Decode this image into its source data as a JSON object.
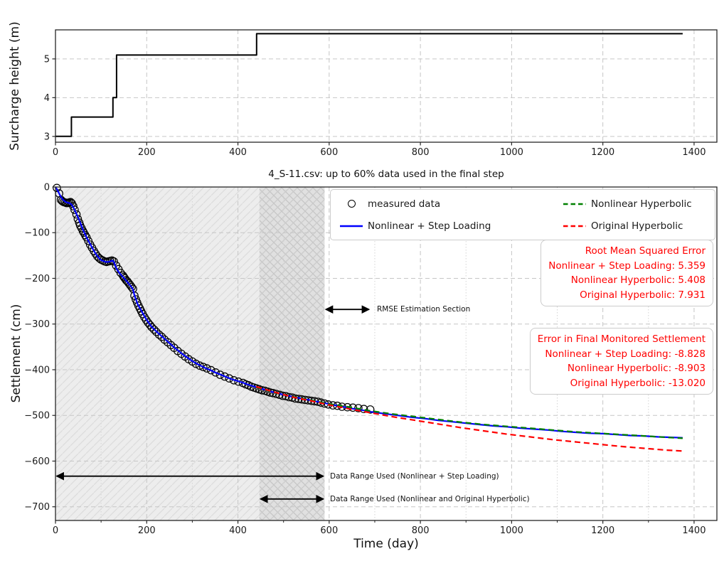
{
  "figure": {
    "title": "4_S-11.csv: up to 60% data used in the final step",
    "colors": {
      "measured": "#000000",
      "step_loading": "#0000ff",
      "nonlinear_hyperbolic": "#008000",
      "original_hyperbolic": "#ff0000",
      "annotation_text": "#ff0000",
      "grid": "#c6c6c6",
      "shade_light": "#ededed",
      "shade_dark": "#dddddd"
    }
  },
  "chart_data": [
    {
      "type": "line",
      "id": "surcharge",
      "ylabel": "Surcharge height (m)",
      "xlim": [
        0,
        1450
      ],
      "ylim": [
        2.85,
        5.75
      ],
      "xticks": [
        0,
        200,
        400,
        600,
        800,
        1000,
        1200,
        1400
      ],
      "xminor": [],
      "yticks": [
        3,
        4,
        5
      ],
      "grid": true,
      "series": [
        {
          "name": "surcharge-height",
          "color": "#000000",
          "style": "solid",
          "width": 2,
          "x": [
            0,
            35,
            35,
            126,
            126,
            134,
            134,
            441,
            441,
            1375
          ],
          "y": [
            3.0,
            3.0,
            3.5,
            3.5,
            4.0,
            4.0,
            5.1,
            5.1,
            5.65,
            5.65
          ]
        }
      ]
    },
    {
      "type": "scatter+line",
      "id": "settlement",
      "xlabel": "Time (day)",
      "ylabel": "Settlement (cm)",
      "xlim": [
        0,
        1450
      ],
      "ylim": [
        -730,
        0
      ],
      "xticks": [
        0,
        200,
        400,
        600,
        800,
        1000,
        1200,
        1400
      ],
      "xminor": [
        100,
        300,
        500,
        700,
        900,
        1100,
        1300
      ],
      "yticks": [
        0,
        -100,
        -200,
        -300,
        -400,
        -500,
        -600,
        -700
      ],
      "grid": true,
      "regions": [
        {
          "x0": 0,
          "x1": 590,
          "hatch": "/",
          "note": "Data range used (Nonlinear + Step Loading)"
        },
        {
          "x0": 447,
          "x1": 590,
          "hatch": "x",
          "note": "Data range used (Nonlinear and Original Hyperbolic)"
        }
      ],
      "measured": {
        "label": "measured data",
        "x": [
          3,
          8,
          12,
          15,
          18,
          21,
          24,
          27,
          30,
          33,
          36,
          39,
          42,
          46,
          49,
          52,
          54,
          57,
          60,
          62,
          65,
          68,
          72,
          76,
          80,
          84,
          88,
          92,
          96,
          100,
          104,
          108,
          112,
          116,
          120,
          124,
          128,
          133,
          138,
          143,
          148,
          150,
          152,
          155,
          158,
          161,
          164,
          167,
          170,
          173,
          176,
          179,
          182,
          185,
          188,
          191,
          195,
          199,
          203,
          207,
          211,
          216,
          221,
          227,
          233,
          239,
          246,
          253,
          260,
          268,
          276,
          284,
          292,
          300,
          308,
          316,
          324,
          332,
          341,
          351,
          361,
          371,
          381,
          391,
          401,
          411,
          417,
          423,
          429,
          435,
          441,
          447,
          453,
          459,
          465,
          471,
          477,
          484,
          491,
          498,
          505,
          512,
          519,
          526,
          533,
          540,
          547,
          554,
          561,
          568,
          575,
          582,
          590,
          598,
          608,
          618,
          628,
          640,
          652,
          664,
          676,
          690
        ],
        "y": [
          -2,
          -14,
          -28,
          -31,
          -33,
          -34,
          -35,
          -35,
          -34,
          -33,
          -36,
          -42,
          -50,
          -60,
          -70,
          -78,
          -84,
          -90,
          -96,
          -100,
          -105,
          -110,
          -118,
          -126,
          -133,
          -140,
          -146,
          -152,
          -156,
          -159,
          -161,
          -163,
          -164,
          -163,
          -162,
          -161,
          -163,
          -172,
          -180,
          -188,
          -194,
          -197,
          -200,
          -204,
          -207,
          -211,
          -215,
          -219,
          -223,
          -238,
          -246,
          -253,
          -260,
          -266,
          -272,
          -278,
          -285,
          -291,
          -297,
          -302,
          -307,
          -312,
          -317,
          -323,
          -328,
          -334,
          -340,
          -346,
          -352,
          -359,
          -365,
          -371,
          -377,
          -382,
          -387,
          -391,
          -394,
          -397,
          -401,
          -406,
          -411,
          -415,
          -419,
          -423,
          -426,
          -429,
          -432,
          -434,
          -437,
          -439,
          -441,
          -443,
          -445,
          -446,
          -448,
          -450,
          -451,
          -453,
          -455,
          -457,
          -458,
          -460,
          -461,
          -463,
          -464,
          -465,
          -466,
          -467,
          -468,
          -469,
          -470,
          -472,
          -474,
          -476,
          -478,
          -479,
          -481,
          -482,
          -483,
          -484,
          -486,
          -487
        ]
      },
      "series": [
        {
          "name": "Nonlinear + Step Loading",
          "color": "#0000ff",
          "style": "solid",
          "width": 2.2,
          "x": [
            0,
            5,
            10,
            15,
            20,
            25,
            30,
            35,
            40,
            45,
            50,
            55,
            60,
            65,
            70,
            75,
            80,
            85,
            90,
            95,
            100,
            105,
            110,
            115,
            120,
            125,
            128,
            131,
            135,
            140,
            145,
            150,
            155,
            160,
            165,
            170,
            173,
            176,
            180,
            185,
            190,
            195,
            200,
            205,
            210,
            220,
            230,
            240,
            250,
            260,
            270,
            280,
            290,
            300,
            310,
            320,
            330,
            340,
            350,
            360,
            370,
            380,
            390,
            400,
            410,
            420,
            430,
            440,
            450,
            460,
            470,
            480,
            490,
            500,
            510,
            520,
            530,
            540,
            550,
            560,
            570,
            580,
            590,
            610,
            630,
            650,
            670,
            690,
            720,
            750,
            780,
            810,
            840,
            870,
            900,
            930,
            960,
            990,
            1020,
            1050,
            1080,
            1110,
            1140,
            1170,
            1200,
            1230,
            1260,
            1290,
            1320,
            1350,
            1375
          ],
          "y": [
            0,
            -8,
            -18,
            -26,
            -31,
            -34,
            -35,
            -38,
            -46,
            -57,
            -68,
            -80,
            -93,
            -104,
            -114,
            -123,
            -132,
            -141,
            -149,
            -155,
            -160,
            -162,
            -164,
            -164,
            -163,
            -161,
            -164,
            -172,
            -181,
            -188,
            -194,
            -199,
            -205,
            -211,
            -217,
            -224,
            -237,
            -245,
            -256,
            -265,
            -274,
            -283,
            -291,
            -298,
            -305,
            -315,
            -324,
            -333,
            -342,
            -351,
            -359,
            -367,
            -374,
            -381,
            -387,
            -392,
            -397,
            -401,
            -406,
            -410,
            -414,
            -418,
            -422,
            -425,
            -428,
            -432,
            -435,
            -438,
            -441,
            -444,
            -447,
            -450,
            -452,
            -455,
            -457,
            -459,
            -461,
            -463,
            -465,
            -467,
            -469,
            -471,
            -473,
            -477,
            -481,
            -485,
            -488,
            -492,
            -496,
            -500,
            -504,
            -507,
            -511,
            -514,
            -517,
            -520,
            -523,
            -525,
            -528,
            -530,
            -532,
            -535,
            -537,
            -539,
            -540,
            -542,
            -544,
            -545,
            -547,
            -548,
            -549
          ]
        },
        {
          "name": "Nonlinear Hyperbolic",
          "color": "#008000",
          "style": "dashed",
          "width": 2.2,
          "x": [
            440,
            480,
            520,
            560,
            600,
            640,
            690,
            740,
            790,
            840,
            890,
            940,
            990,
            1040,
            1090,
            1140,
            1190,
            1240,
            1290,
            1340,
            1375
          ],
          "y": [
            -438,
            -450,
            -459,
            -467,
            -475,
            -481,
            -490,
            -497,
            -503,
            -509,
            -515,
            -520,
            -524,
            -528,
            -532,
            -536,
            -539,
            -542,
            -545,
            -548,
            -550
          ]
        },
        {
          "name": "Original Hyperbolic",
          "color": "#ff0000",
          "style": "dashed",
          "width": 2.2,
          "x": [
            440,
            480,
            520,
            560,
            600,
            640,
            690,
            740,
            790,
            840,
            890,
            940,
            990,
            1040,
            1090,
            1140,
            1190,
            1240,
            1290,
            1340,
            1375
          ],
          "y": [
            -437,
            -449,
            -460,
            -468,
            -477,
            -485,
            -494,
            -503,
            -511,
            -519,
            -527,
            -534,
            -541,
            -547,
            -553,
            -558,
            -563,
            -568,
            -572,
            -576,
            -578
          ]
        }
      ],
      "legend": [
        {
          "marker": "circle",
          "color": "#000000",
          "label": "measured data"
        },
        {
          "marker": "line-solid",
          "color": "#0000ff",
          "label": "Nonlinear + Step Loading"
        },
        {
          "marker": "line-dashed",
          "color": "#008000",
          "label": "Nonlinear Hyperbolic"
        },
        {
          "marker": "line-dashed",
          "color": "#ff0000",
          "label": "Original Hyperbolic"
        }
      ],
      "annotations": {
        "rmse_box": {
          "lines": [
            "Root Mean Squared Error",
            "Nonlinear + Step Loading: 5.359",
            "Nonlinear Hyperbolic: 5.408",
            "Original Hyperbolic: 7.931"
          ]
        },
        "error_box": {
          "lines": [
            "Error in Final Monitored Settlement",
            "Nonlinear + Step Loading: -8.828",
            "Nonlinear Hyperbolic: -8.903",
            "Original Hyperbolic: -13.020"
          ]
        },
        "arrows": [
          {
            "x0": 590,
            "x1": 690,
            "y": -268,
            "label": "RMSE Estimation Section"
          },
          {
            "x0": 0,
            "x1": 590,
            "y": -633,
            "label": "Data Range Used (Nonlinear + Step Loading)"
          },
          {
            "x0": 447,
            "x1": 590,
            "y": -683,
            "label": "Data Range Used (Nonlinear and Original Hyperbolic)"
          }
        ]
      }
    }
  ]
}
